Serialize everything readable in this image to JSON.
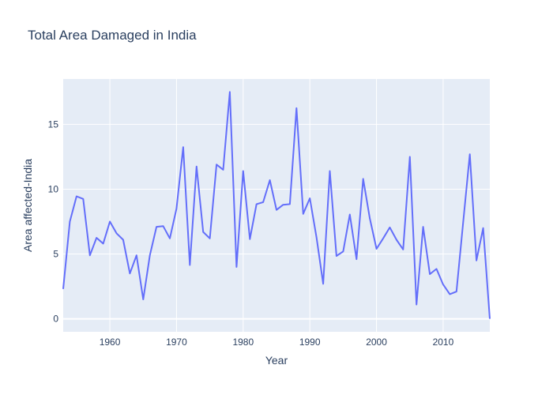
{
  "chart_data": {
    "type": "line",
    "title": "Total Area Damaged in India",
    "xlabel": "Year",
    "ylabel": "Area affected-India",
    "xlim": [
      1953,
      2017
    ],
    "ylim": [
      -1,
      18.5
    ],
    "x_ticks": [
      1960,
      1970,
      1980,
      1990,
      2000,
      2010
    ],
    "y_ticks": [
      0,
      5,
      10,
      15
    ],
    "grid": true,
    "legend": "none",
    "colors": {
      "line": "#636efa",
      "plot_bg": "#e5ecf6",
      "grid": "#ffffff",
      "text": "#2a3f5f"
    },
    "series": [
      {
        "x": [
          1953,
          1954,
          1955,
          1956,
          1957,
          1958,
          1959,
          1960,
          1961,
          1962,
          1963,
          1964,
          1965,
          1966,
          1967,
          1968,
          1969,
          1970,
          1971,
          1972,
          1973,
          1974,
          1975,
          1976,
          1977,
          1978,
          1979,
          1980,
          1981,
          1982,
          1983,
          1984,
          1985,
          1986,
          1987,
          1988,
          1989,
          1990,
          1991,
          1992,
          1993,
          1994,
          1995,
          1996,
          1997,
          1998,
          1999,
          2000,
          2001,
          2002,
          2003,
          2004,
          2005,
          2006,
          2007,
          2008,
          2009,
          2010,
          2011,
          2012,
          2013,
          2014,
          2015,
          2016,
          2017
        ],
        "y": [
          2.3,
          7.5,
          9.45,
          9.25,
          4.9,
          6.25,
          5.8,
          7.5,
          6.6,
          6.1,
          3.5,
          4.9,
          1.5,
          4.9,
          7.1,
          7.15,
          6.2,
          8.5,
          13.25,
          4.15,
          11.75,
          6.7,
          6.2,
          11.9,
          11.5,
          17.5,
          4.0,
          11.4,
          6.15,
          8.85,
          9.0,
          10.7,
          8.4,
          8.8,
          8.85,
          16.25,
          8.1,
          9.3,
          6.3,
          2.7,
          11.4,
          4.85,
          5.2,
          8.05,
          4.6,
          10.8,
          7.75,
          5.4,
          6.2,
          7.05,
          6.1,
          5.35,
          12.5,
          1.1,
          7.1,
          3.45,
          3.85,
          2.65,
          1.9,
          2.1,
          7.45,
          12.7,
          4.5,
          7.0,
          0.0
        ]
      }
    ]
  }
}
